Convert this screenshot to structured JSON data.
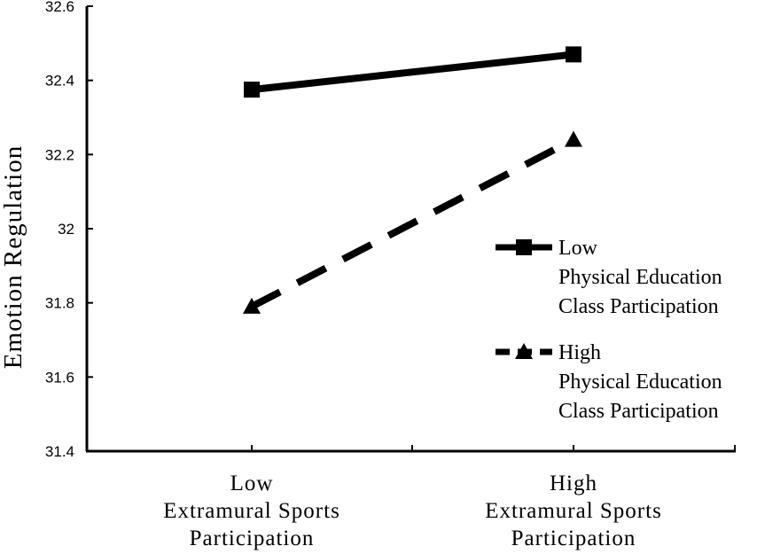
{
  "chart_data": {
    "type": "line",
    "xlabel": "",
    "ylabel": "Emotion Regulation",
    "categories": [
      [
        "Low",
        "Extramural Sports",
        "Participation"
      ],
      [
        "High",
        "Extramural Sports",
        "Participation"
      ]
    ],
    "ylim": [
      31.4,
      32.6
    ],
    "yticks": [
      "31.4",
      "31.6",
      "31.8",
      "32",
      "32.2",
      "32.4",
      "32.6"
    ],
    "grid": false,
    "legend_position": "right",
    "series": [
      {
        "name": [
          "Low",
          "Physical Education",
          "Class Participation"
        ],
        "values": [
          32.375,
          32.47
        ],
        "line_style": "solid",
        "marker": "square",
        "color": "#000000"
      },
      {
        "name": [
          "High",
          "Physical Education",
          "Class Participation"
        ],
        "values": [
          31.79,
          32.24
        ],
        "line_style": "dashed",
        "marker": "triangle",
        "color": "#000000"
      }
    ]
  }
}
